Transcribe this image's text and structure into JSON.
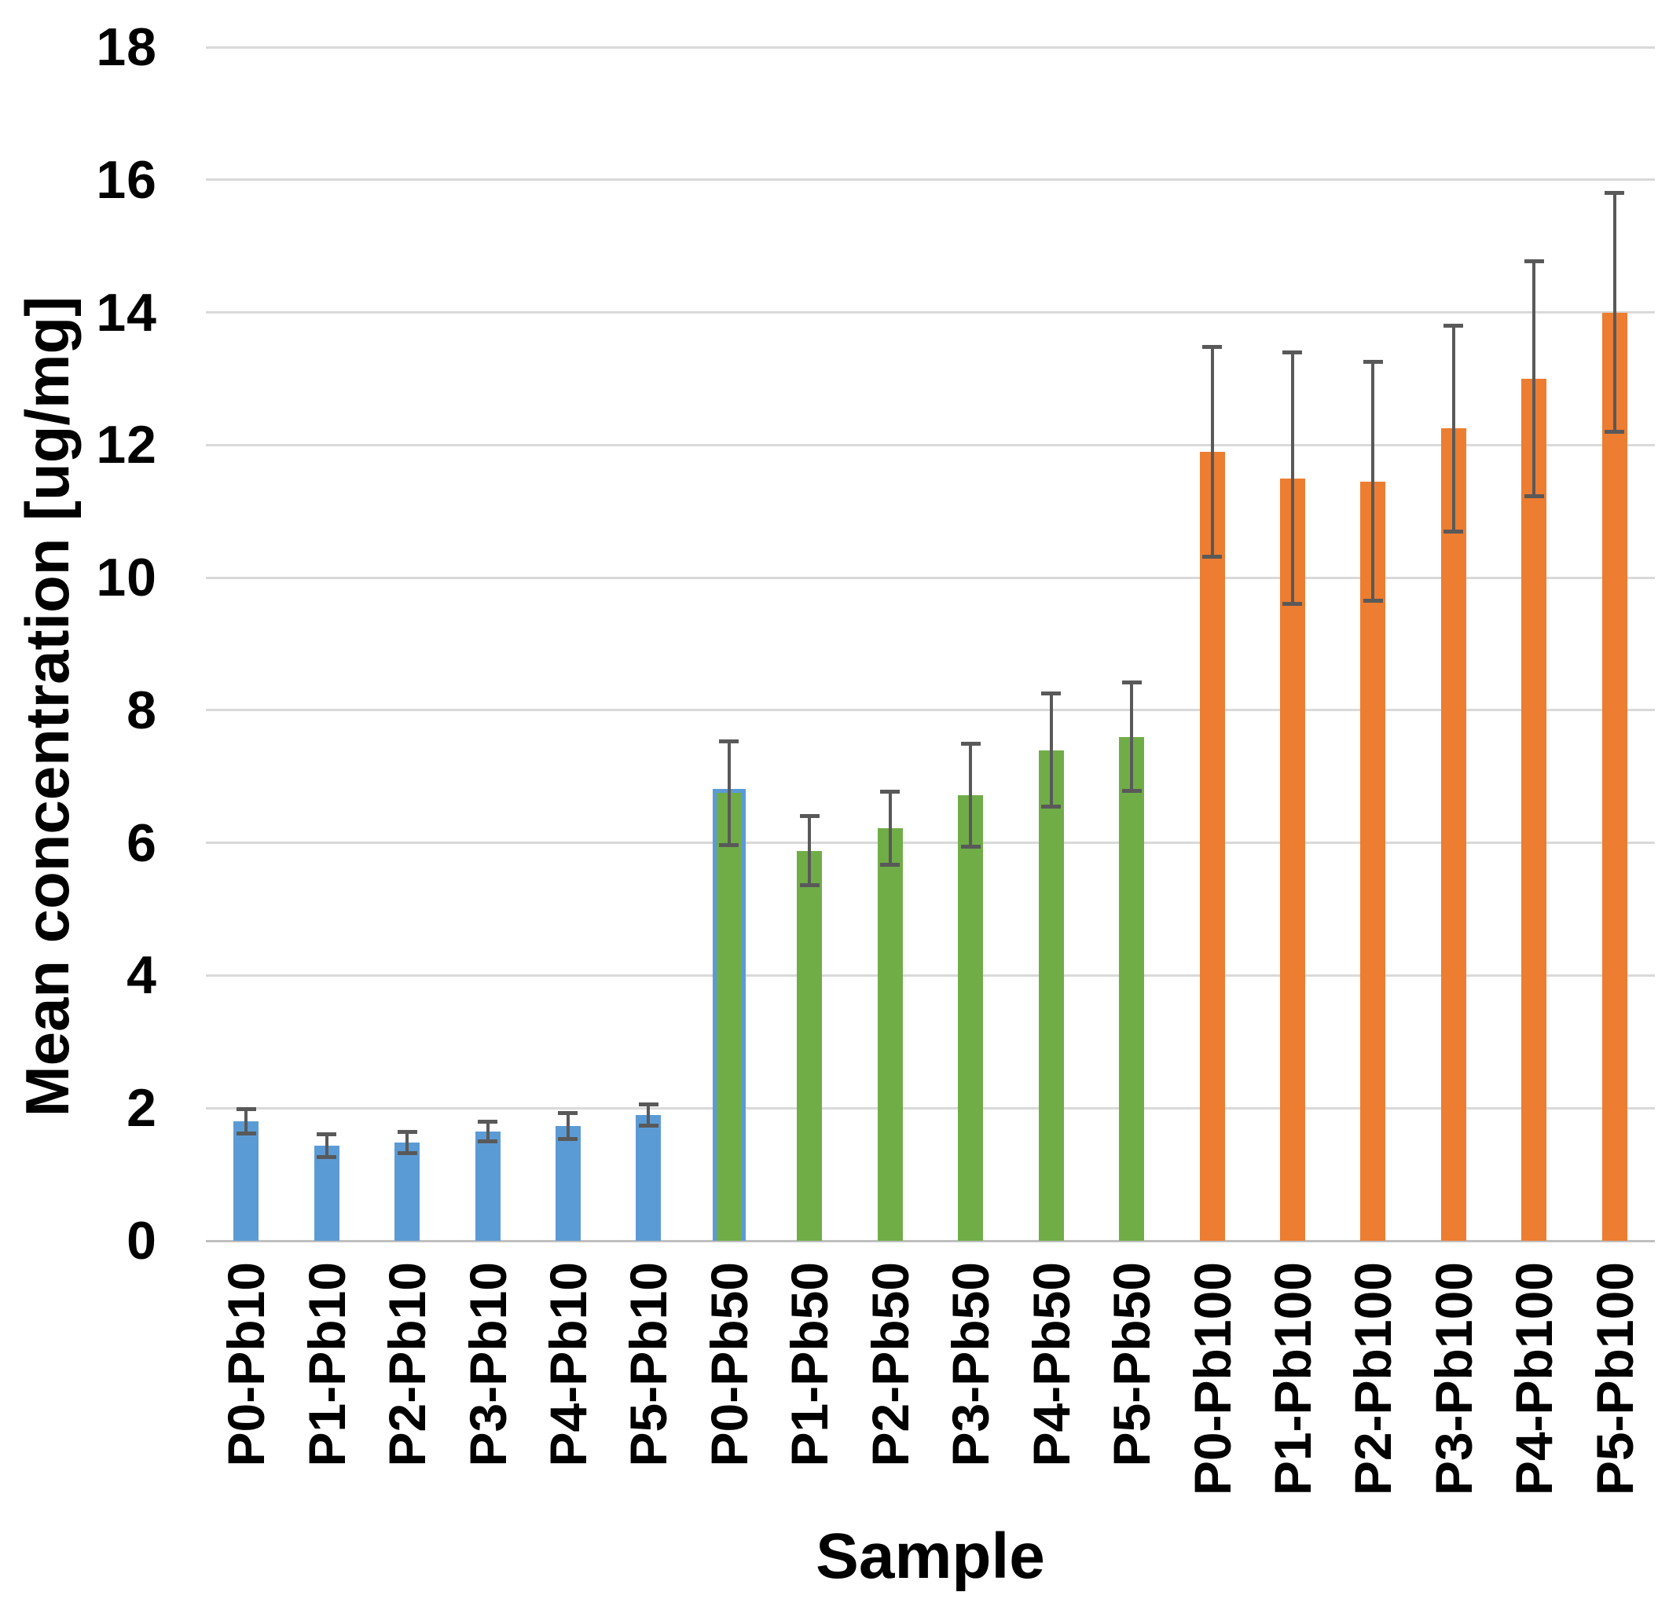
{
  "chart_data": {
    "type": "bar",
    "title": "",
    "xlabel": "Sample",
    "ylabel": "Mean concentration [ug/mg]",
    "ylim": [
      0,
      18
    ],
    "ytick_step": 2,
    "yticks": [
      0,
      2,
      4,
      6,
      8,
      10,
      12,
      14,
      16,
      18
    ],
    "grid": "horizontal",
    "legend": "none",
    "error_bars": true,
    "colors": {
      "Pb10": "#5B9BD5",
      "Pb50": "#70AD47",
      "Pb100": "#ED7D31",
      "error_bar": "#595959",
      "gridline": "#D9D9D9",
      "axis_line": "#BFBFBF",
      "text": "#000000",
      "highlight_outline": "#5B9BD5"
    },
    "categories": [
      "P0-Pb10",
      "P1-Pb10",
      "P2-Pb10",
      "P3-Pb10",
      "P4-Pb10",
      "P5-Pb10",
      "P0-Pb50",
      "P1-Pb50",
      "P2-Pb50",
      "P3-Pb50",
      "P4-Pb50",
      "P5-Pb50",
      "P0-Pb100",
      "P1-Pb100",
      "P2-Pb100",
      "P3-Pb100",
      "P4-Pb100",
      "P5-Pb100"
    ],
    "bars": [
      {
        "label": "P0-Pb10",
        "group": "Pb10",
        "value": 1.8,
        "error": 0.18,
        "outlined": false
      },
      {
        "label": "P1-Pb10",
        "group": "Pb10",
        "value": 1.43,
        "error": 0.17,
        "outlined": false
      },
      {
        "label": "P2-Pb10",
        "group": "Pb10",
        "value": 1.48,
        "error": 0.16,
        "outlined": false
      },
      {
        "label": "P3-Pb10",
        "group": "Pb10",
        "value": 1.65,
        "error": 0.15,
        "outlined": false
      },
      {
        "label": "P4-Pb10",
        "group": "Pb10",
        "value": 1.73,
        "error": 0.2,
        "outlined": false
      },
      {
        "label": "P5-Pb10",
        "group": "Pb10",
        "value": 1.9,
        "error": 0.16,
        "outlined": false
      },
      {
        "label": "P0-Pb50",
        "group": "Pb50",
        "value": 6.75,
        "error": 0.78,
        "outlined": true
      },
      {
        "label": "P1-Pb50",
        "group": "Pb50",
        "value": 5.88,
        "error": 0.52,
        "outlined": false
      },
      {
        "label": "P2-Pb50",
        "group": "Pb50",
        "value": 6.22,
        "error": 0.55,
        "outlined": false
      },
      {
        "label": "P3-Pb50",
        "group": "Pb50",
        "value": 6.72,
        "error": 0.78,
        "outlined": false
      },
      {
        "label": "P4-Pb50",
        "group": "Pb50",
        "value": 7.4,
        "error": 0.85,
        "outlined": false
      },
      {
        "label": "P5-Pb50",
        "group": "Pb50",
        "value": 7.6,
        "error": 0.82,
        "outlined": false
      },
      {
        "label": "P0-Pb100",
        "group": "Pb100",
        "value": 11.9,
        "error": 1.58,
        "outlined": false
      },
      {
        "label": "P1-Pb100",
        "group": "Pb100",
        "value": 11.5,
        "error": 1.9,
        "outlined": false
      },
      {
        "label": "P2-Pb100",
        "group": "Pb100",
        "value": 11.45,
        "error": 1.8,
        "outlined": false
      },
      {
        "label": "P3-Pb100",
        "group": "Pb100",
        "value": 12.25,
        "error": 1.55,
        "outlined": false
      },
      {
        "label": "P4-Pb100",
        "group": "Pb100",
        "value": 13.0,
        "error": 1.77,
        "outlined": false
      },
      {
        "label": "P5-Pb100",
        "group": "Pb100",
        "value": 14.0,
        "error": 1.8,
        "outlined": false
      }
    ]
  }
}
